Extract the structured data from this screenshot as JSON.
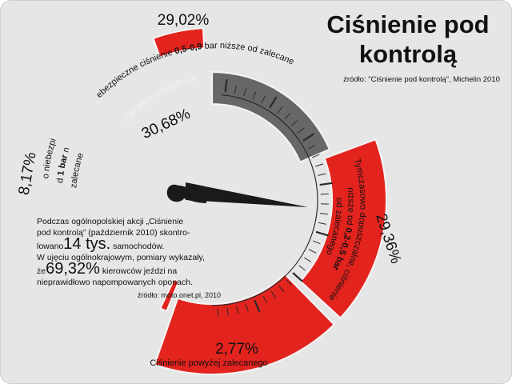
{
  "title": "Ciśnienie pod kontrolą",
  "source": "źródło: \"Ciśnienie pod kontrolą\", Michelin 2010",
  "chart_data": {
    "type": "pie",
    "slices": [
      {
        "label_parts": [
          "Bardzo niebezpieczne",
          "ponad ",
          "1 bar",
          " niższe",
          "od zalecanego"
        ],
        "value": 8.17,
        "value_label": "8,17%",
        "color": "#e3231e"
      },
      {
        "label": "Ciśnienie prawidłowe",
        "value": 30.68,
        "value_label": "30,68%",
        "color": "#676767"
      },
      {
        "label_parts": [
          "Niebezpieczne ciśnienie ",
          "0,5-0,9",
          " bar niższe od zalecanego"
        ],
        "value": 29.02,
        "value_label": "29,02%",
        "color": "#e3231e"
      },
      {
        "label_parts": [
          "Tymczasowo dopuszczalne, ciśnienie",
          "niższe od ",
          "0,2-0,5 bar",
          "od zalecanego"
        ],
        "value": 29.36,
        "value_label": "29,36%",
        "color": "#e3231e"
      },
      {
        "label": "Ciśnienie powyżej zalecanego",
        "value": 2.77,
        "value_label": "2,77%",
        "color": "#e3231e"
      }
    ]
  },
  "note": {
    "line1": "Podczas ogólnopolskiej akcji „Ciśnienie",
    "line2": "pod kontrolą” (październik  2010)  skontro-",
    "line3_a": "lowano",
    "count": "14 tys.",
    "line3_b": " samochodów.",
    "line4": "W ujęciu ogólnokrajowym, pomiary wykazały,",
    "line5_a": "że",
    "share": "69,32%",
    "line5_b": " kierowców jeździ na",
    "line6": "nieprawidłowo napompowanych oponach.",
    "source": "źródło: moto.onet.pl, 2010"
  }
}
